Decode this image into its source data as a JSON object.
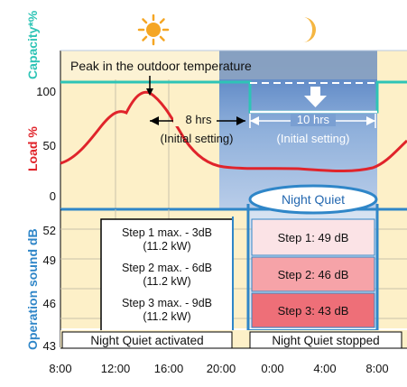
{
  "axis_labels": {
    "capacity": "Capacity*%",
    "load": "Load %",
    "sound": "Operation sound dB"
  },
  "upper_ticks": [
    "100",
    "50",
    "0"
  ],
  "lower_ticks": [
    "52",
    "49",
    "46",
    "43"
  ],
  "time_ticks": [
    "8:00",
    "12:00",
    "16:00",
    "20:00",
    "0:00",
    "4:00",
    "8:00"
  ],
  "icons": {
    "day": "sun-icon",
    "night": "moon-icon",
    "reduction": "down-arrow-icon"
  },
  "annotations": {
    "peak": "Peak in the outdoor  temperature",
    "hrs8_line1": "8 hrs",
    "hrs8_line2": "(Initial setting)",
    "hrs10_line1": "10 hrs",
    "hrs10_line2": "(Initial setting)",
    "night_quiet": "Night Quiet"
  },
  "steps_max": [
    {
      "line1": "Step 1 max. - 3dB",
      "line2": "(11.2 kW)"
    },
    {
      "line1": "Step 2 max. - 6dB",
      "line2": "(11.2 kW)"
    },
    {
      "line1": "Step 3 max. - 9dB",
      "line2": "(11.2 kW)"
    }
  ],
  "steps_night": [
    "Step 1: 49 dB",
    "Step 2: 46 dB",
    "Step 3: 43 dB"
  ],
  "status": {
    "activated": "Night Quiet activated",
    "stopped": "Night Quiet stopped"
  },
  "colors": {
    "capacity_line": "#2ec4b6",
    "load_curve": "#e0242b",
    "day_background": "#fdf0c8",
    "night_band": "#6f98cf",
    "sound_axis": "#2f86c8",
    "step1": "#fbe3e6",
    "step2": "#f6a3a8",
    "step3": "#ee6f78"
  }
}
